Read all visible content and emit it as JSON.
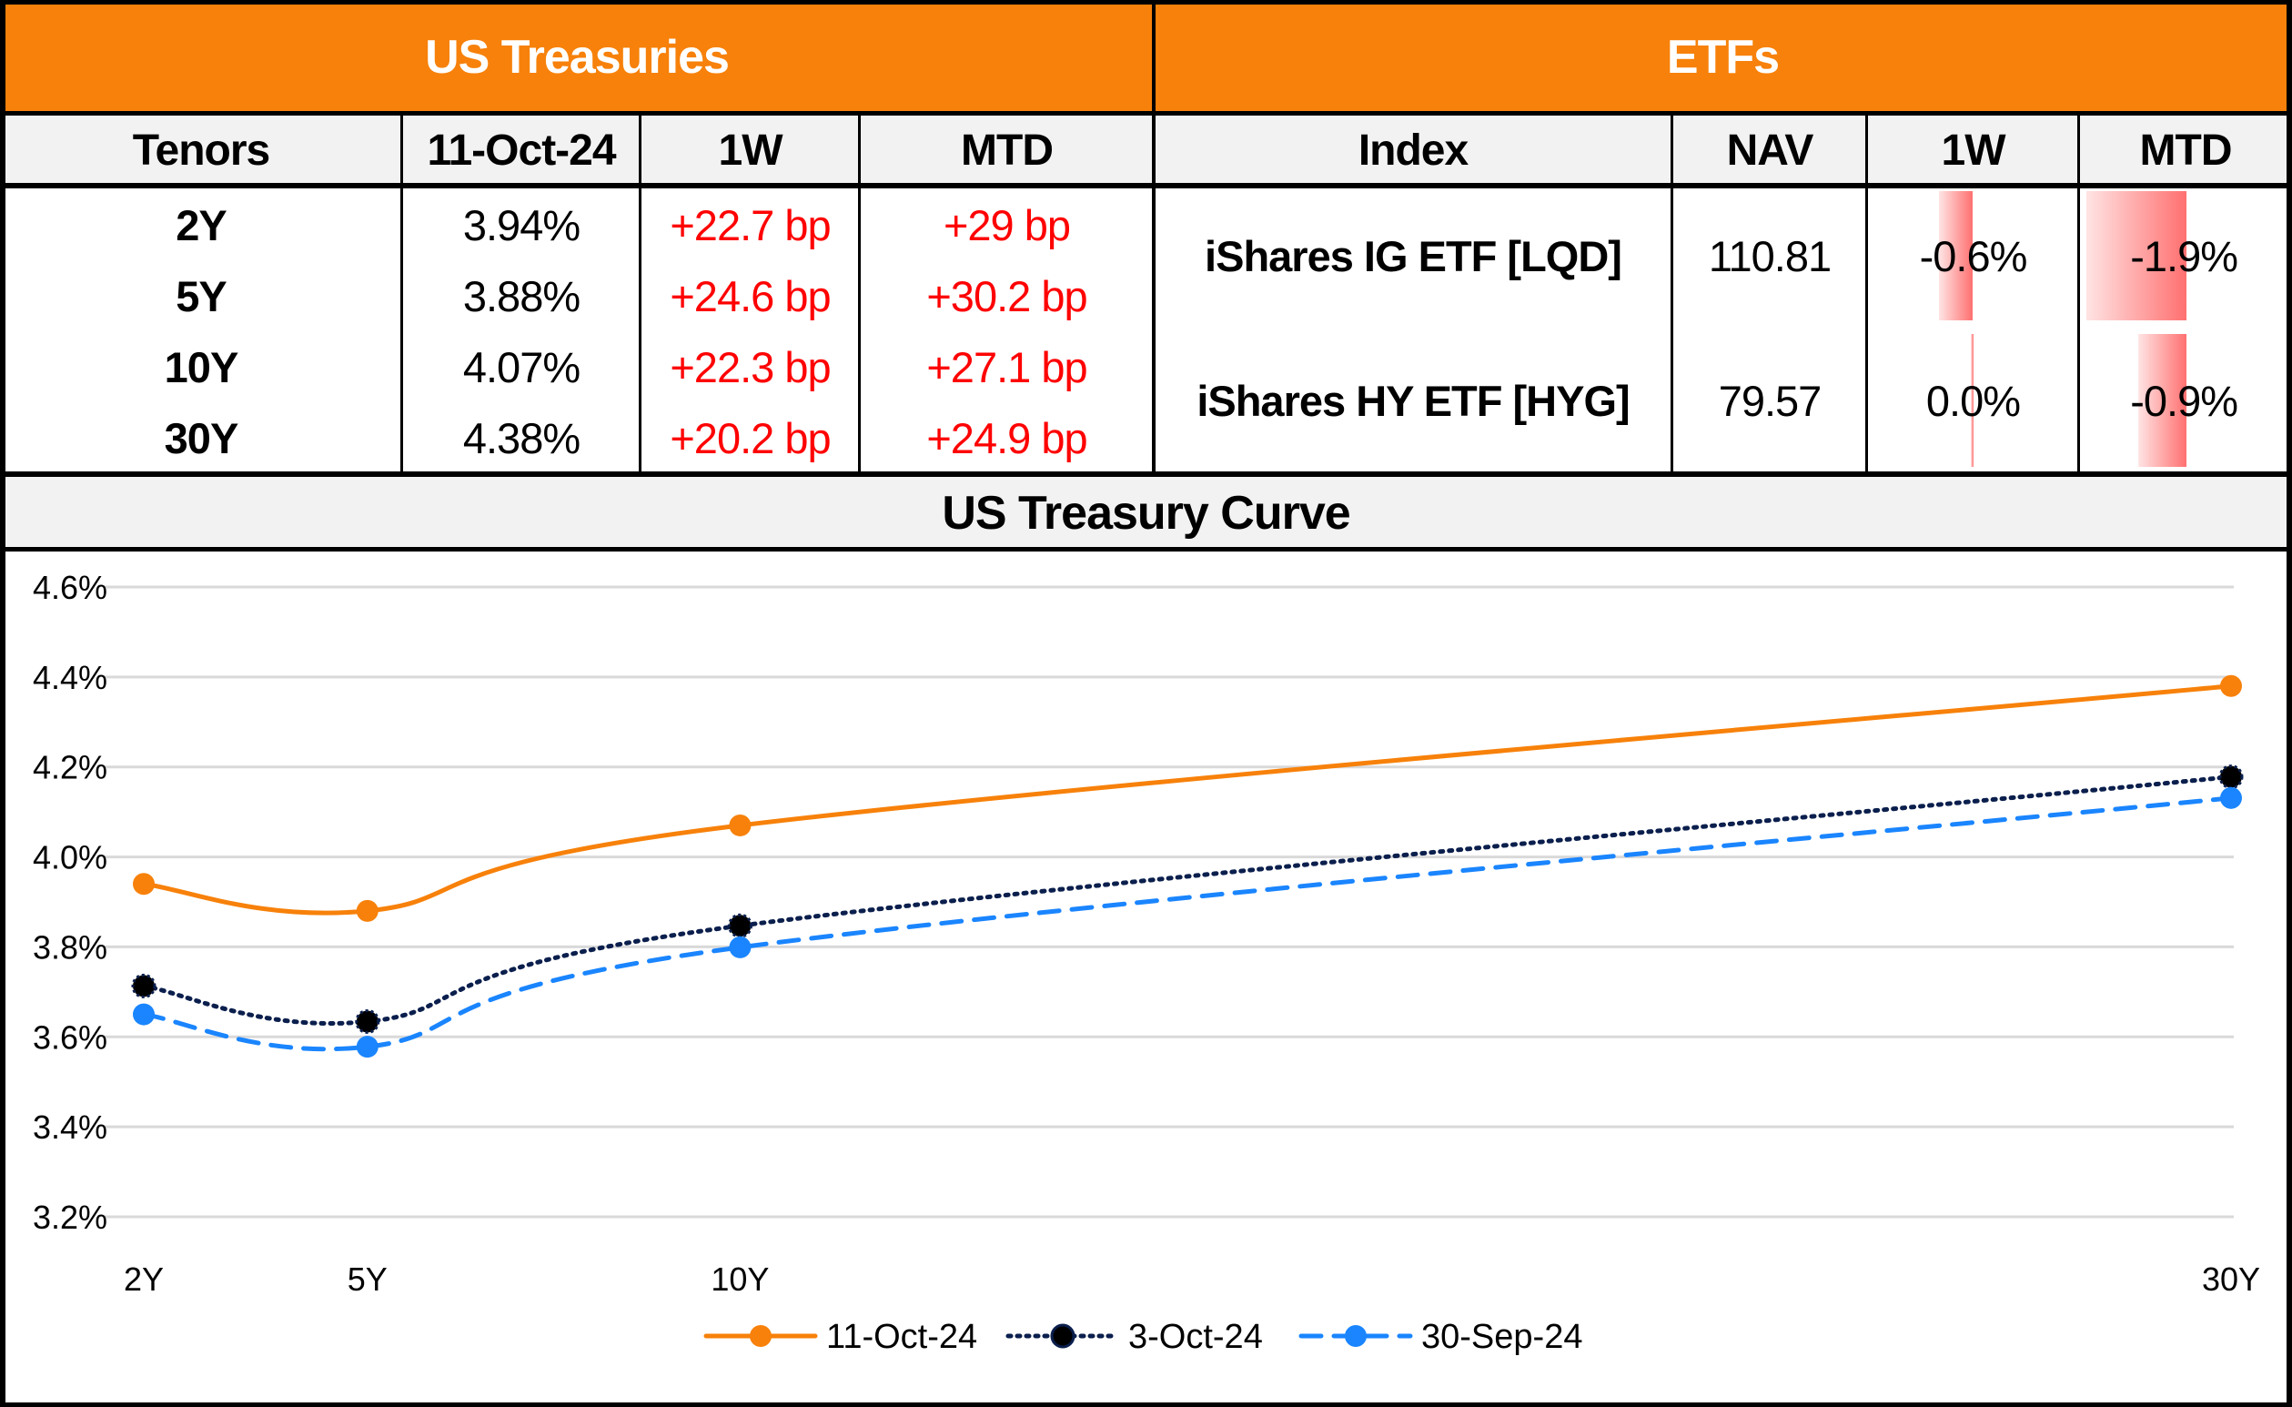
{
  "treasuries": {
    "title": "US Treasuries",
    "headers": [
      "Tenors",
      "11-Oct-24",
      "1W",
      "MTD"
    ],
    "rows": [
      {
        "tenor": "2Y",
        "yield": "3.94%",
        "w1": "+22.7 bp",
        "mtd": "+29 bp"
      },
      {
        "tenor": "5Y",
        "yield": "3.88%",
        "w1": "+24.6 bp",
        "mtd": "+30.2 bp"
      },
      {
        "tenor": "10Y",
        "yield": "4.07%",
        "w1": "+22.3 bp",
        "mtd": "+27.1 bp"
      },
      {
        "tenor": "30Y",
        "yield": "4.38%",
        "w1": "+20.2 bp",
        "mtd": "+24.9 bp"
      }
    ]
  },
  "etfs": {
    "title": "ETFs",
    "headers": [
      "Index",
      "NAV",
      "1W",
      "MTD"
    ],
    "rows": [
      {
        "name": "iShares IG ETF [LQD]",
        "nav": "110.81",
        "w1": "-0.6%",
        "mtd": "-1.9%",
        "w1_value": -0.6,
        "mtd_value": -1.9
      },
      {
        "name": "iShares HY ETF [HYG]",
        "nav": "79.57",
        "w1": "0.0%",
        "mtd": "-0.9%",
        "w1_value": 0.0,
        "mtd_value": -0.9
      }
    ],
    "databar_color": "#FF6B6B"
  },
  "colors": {
    "header_orange": "#F7810A",
    "header_gray": "#F2F2F2",
    "positive_bp": "#FF0000"
  },
  "chart_data": {
    "type": "line",
    "title": "US Treasury Curve",
    "xlabel": "",
    "ylabel": "",
    "x": [
      2,
      5,
      10,
      30
    ],
    "x_tick_labels": [
      "2Y",
      "5Y",
      "10Y",
      "30Y"
    ],
    "xlim": [
      2,
      30
    ],
    "ylim": [
      3.2,
      4.6
    ],
    "y_ticks": [
      4.6,
      4.4,
      4.2,
      4.0,
      3.8,
      3.6,
      3.4,
      3.2
    ],
    "y_tick_labels": [
      "4.6%",
      "4.4%",
      "4.2%",
      "4.0%",
      "3.8%",
      "3.6%",
      "3.4%",
      "3.2%"
    ],
    "grid": true,
    "legend_position": "bottom",
    "smooth": true,
    "series": [
      {
        "name": "11-Oct-24",
        "values": [
          3.94,
          3.88,
          4.07,
          4.38
        ],
        "color": "#F7810A",
        "style": "solid"
      },
      {
        "name": "3-Oct-24",
        "values": [
          3.713,
          3.634,
          3.847,
          4.178
        ],
        "color": "#0B1F4D",
        "style": "dotted"
      },
      {
        "name": "30-Sep-24",
        "values": [
          3.65,
          3.578,
          3.799,
          4.131
        ],
        "color": "#1A85FF",
        "style": "dashed"
      }
    ]
  }
}
